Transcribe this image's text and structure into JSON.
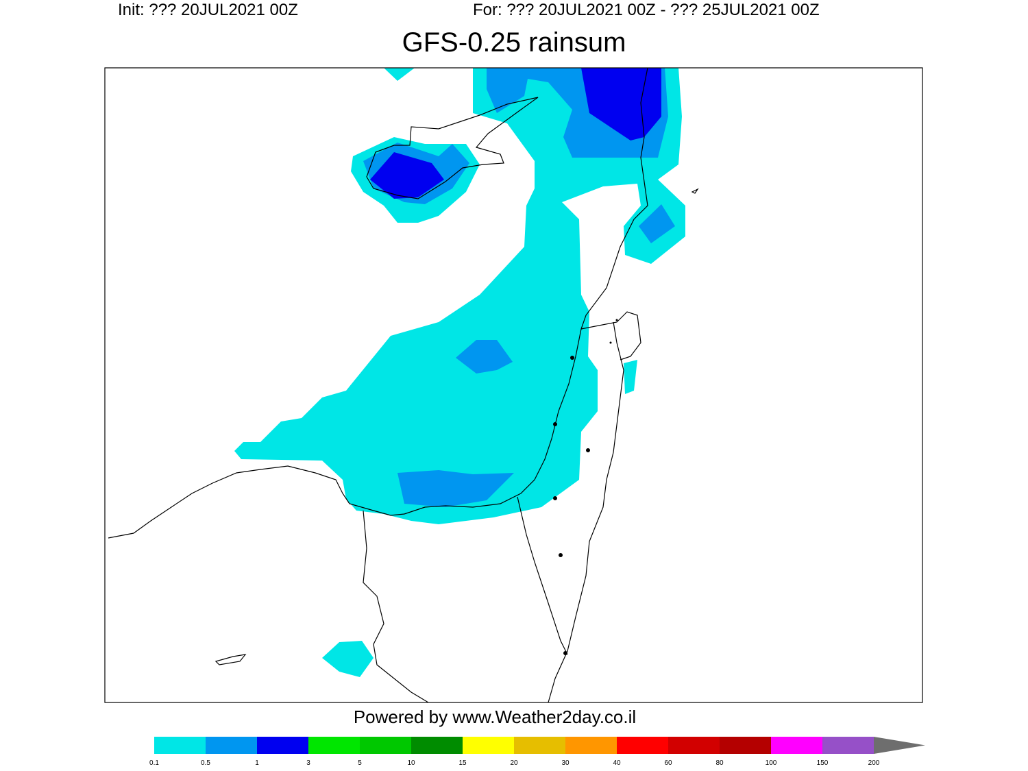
{
  "header": {
    "init": "Init: ??? 20JUL2021 00Z",
    "valid": "For: ??? 20JUL2021 00Z - ??? 25JUL2021 00Z",
    "title": "GFS-0.25 rainsum"
  },
  "footer": {
    "credit": "Powered by www.Weather2day.co.il"
  },
  "colorbar": {
    "bounds": [
      0.1,
      0.5,
      1,
      3,
      5,
      10,
      15,
      20,
      30,
      40,
      60,
      80,
      100,
      150,
      200
    ],
    "colors": [
      "#00e6e6",
      "#0096f0",
      "#0000f0",
      "#00e600",
      "#00c800",
      "#008c00",
      "#ffff00",
      "#e6be00",
      "#ff9600",
      "#ff0000",
      "#d20000",
      "#b40000",
      "#ff00ff",
      "#9650c8"
    ],
    "arrow_color": "#6e6e6e"
  }
}
